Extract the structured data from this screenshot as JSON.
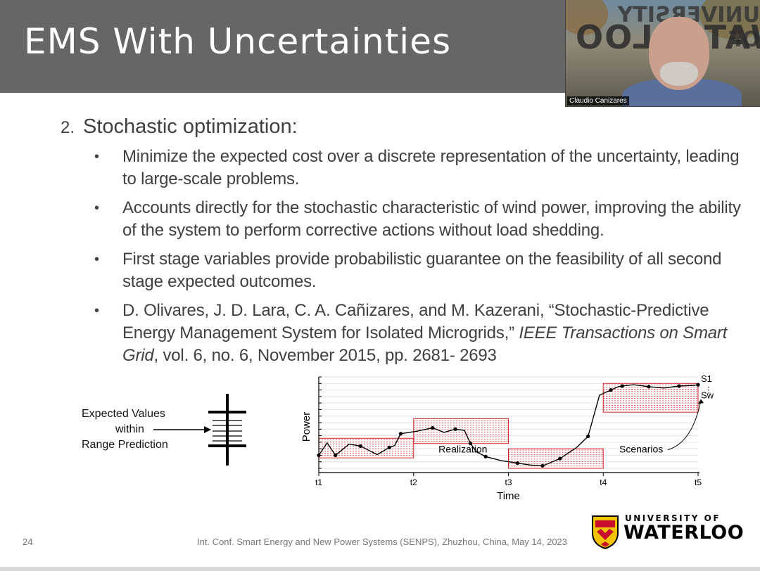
{
  "slide": {
    "title": "EMS With Uncertainties",
    "heading_number": "2.",
    "heading": "Stochastic optimization:",
    "bullets": [
      "Minimize the expected cost over a discrete representation of the uncertainty, leading to large-scale problems.",
      "Accounts directly for the stochastic characteristic of  wind power, improving the ability of the system to perform corrective actions without load shedding.",
      "First stage variables provide probabilistic guarantee on the feasibility of all second stage expected outcomes."
    ],
    "reference": {
      "authors_title": "D. Olivares, J. D. Lara, C. A. Cañizares, and M. Kazerani, “Stochastic-Predictive Energy Management System for Isolated Microgrids,”",
      "journal": "IEEE Transactions on Smart Grid",
      "details": ", vol. 6, no. 6, November 2015, pp. 2681- 2693"
    },
    "bullet_glyph": "•"
  },
  "video": {
    "participant_name": "Claudio Canizares",
    "sign_text": "WATERLOO",
    "sign_top_text": "UNIVERSITY OF"
  },
  "range_figure": {
    "label_line1": "Expected Values",
    "label_line2": "within",
    "label_line3": "Range Prediction"
  },
  "chart_data": {
    "type": "line",
    "ylabel": "Power",
    "xlabel": "Time",
    "x_ticks": [
      "t1",
      "t2",
      "t3",
      "t4",
      "t5"
    ],
    "annotations": [
      "Realization",
      "Scenarios"
    ],
    "scenario_labels": [
      "S1",
      "Sw",
      "⋮"
    ],
    "realization_x": [
      0,
      0.11,
      0.22,
      0.4,
      0.55,
      0.77,
      0.93,
      1.0,
      1.08,
      1.3,
      1.5,
      1.65,
      1.8,
      1.92,
      2.0,
      2.08,
      2.2,
      2.4,
      2.62,
      2.8,
      2.95,
      3.0,
      3.18,
      3.4,
      3.55,
      3.7,
      3.85,
      3.95,
      4.0,
      4.15,
      4.35,
      4.55,
      4.75,
      4.95,
      5.0
    ],
    "realization_y": [
      2.0,
      3.9,
      2.0,
      3.7,
      3.4,
      2.1,
      3.2,
      3.5,
      5.3,
      5.7,
      6.2,
      5.5,
      6.0,
      5.8,
      3.8,
      2.5,
      1.8,
      1.2,
      0.8,
      0.5,
      0.4,
      0.6,
      1.5,
      3.2,
      4.9,
      11.2,
      12.0,
      12.5,
      12.6,
      12.8,
      12.5,
      12.3,
      12.6,
      12.7,
      12.8
    ],
    "scenario_bands": [
      {
        "from": "t1",
        "to": "t2",
        "low": 1.6,
        "high": 4.6
      },
      {
        "from": "t2",
        "to": "t3",
        "low": 3.8,
        "high": 7.6
      },
      {
        "from": "t3",
        "to": "t4",
        "low": 0.0,
        "high": 3.0
      },
      {
        "from": "t4",
        "to": "t5",
        "low": 8.6,
        "high": 13.0
      }
    ],
    "ylim": [
      0,
      14
    ],
    "grid": true,
    "series_color": "#000000",
    "band_color": "#d62728"
  },
  "footer": {
    "page_number": "24",
    "conference": "Int. Conf. Smart Energy and New Power Systems (SENPS), Zhuzhou, China, May 14, 2023"
  },
  "logo": {
    "line1": "UNIVERSITY OF",
    "line2": "WATERLOO",
    "crest_icon": "shield-crest-icon"
  },
  "colors": {
    "title_bar": "#666666",
    "title_text": "#ffffff",
    "body_text": "#404040"
  }
}
